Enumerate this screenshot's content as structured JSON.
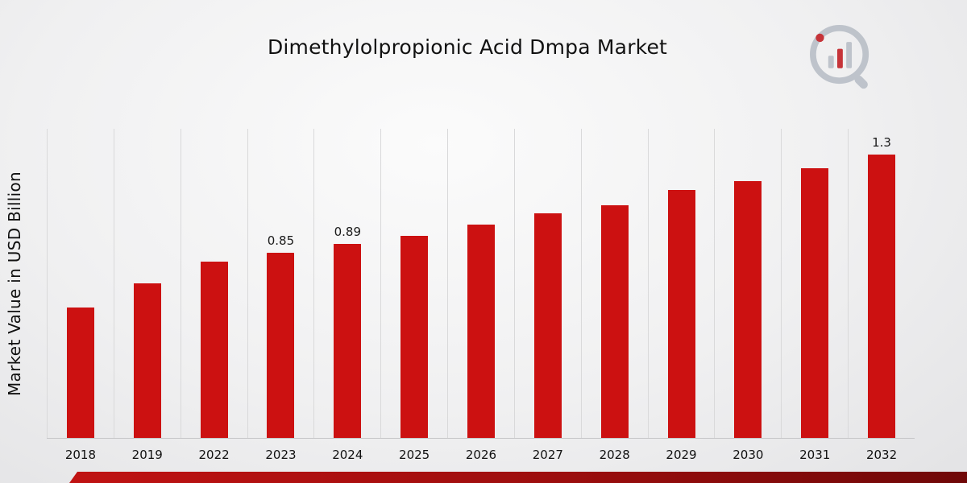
{
  "page": {
    "title": "Dimethylolpropionic Acid Dmpa Market"
  },
  "branding": {
    "logo_icon": "bar-chart-magnifier-logo",
    "ring_color": "#b9bfc7",
    "accent_color": "#c22026"
  },
  "chart_data": {
    "type": "bar",
    "title": "Dimethylolpropionic Acid Dmpa Market",
    "xlabel": "",
    "ylabel": "Market Value in USD Billion",
    "categories": [
      "2018",
      "2019",
      "2022",
      "2023",
      "2024",
      "2025",
      "2026",
      "2027",
      "2028",
      "2029",
      "2030",
      "2031",
      "2032"
    ],
    "values": [
      0.6,
      0.71,
      0.81,
      0.85,
      0.89,
      0.93,
      0.98,
      1.03,
      1.07,
      1.14,
      1.18,
      1.24,
      1.3
    ],
    "shown_labels": {
      "2023": "0.85",
      "2024": "0.89",
      "2032": "1.3"
    },
    "bar_color": "#cc1111",
    "ylim": [
      0,
      1.42
    ],
    "grid": "vertical-category-separators",
    "legend": "none"
  }
}
